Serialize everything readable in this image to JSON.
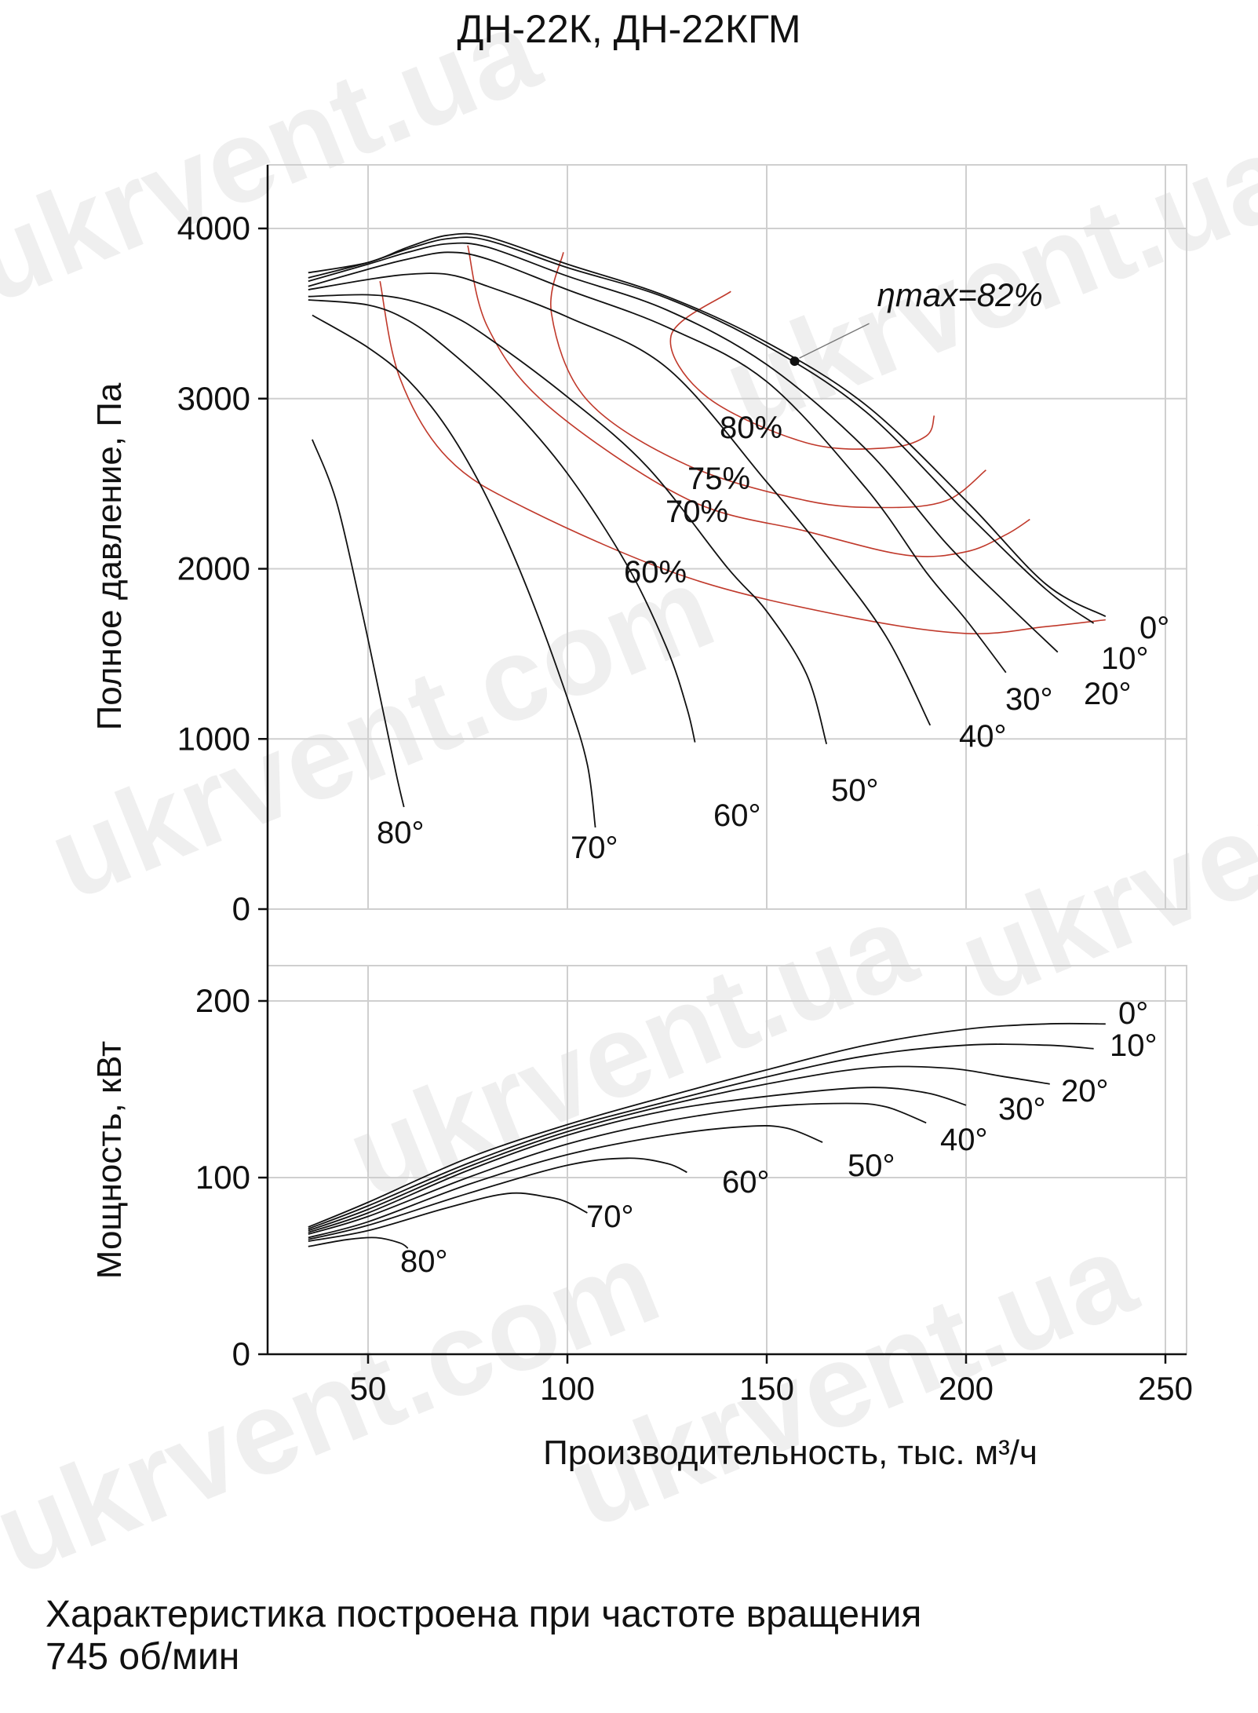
{
  "title": "ДН-22К, ДН-22КГМ",
  "watermark_text": "ukrvent.ua",
  "watermark_text_alt": "ukrvent.com",
  "note_line1": "Характеристика построена при частоте вращения",
  "note_line2": "745 об/мин",
  "chart_data": [
    {
      "type": "line",
      "panel": "pressure",
      "ylabel": "Полное давление, Па",
      "xlabel": "Производительность, тыс. м³/ч",
      "xlim": [
        35,
        255
      ],
      "ylim": [
        0,
        4400
      ],
      "yticks": [
        0,
        1000,
        2000,
        3000,
        4000
      ],
      "xticks": [
        50,
        100,
        150,
        200,
        250
      ],
      "grid": true,
      "series_color": "#111111",
      "efficiency_color": "#c0392b",
      "series": [
        {
          "name": "0°",
          "x": [
            35,
            50,
            60,
            70,
            80,
            100,
            125,
            150,
            175,
            200,
            220,
            235
          ],
          "y": [
            3740,
            3800,
            3890,
            3960,
            3950,
            3790,
            3600,
            3330,
            2960,
            2400,
            1910,
            1720
          ]
        },
        {
          "name": "10°",
          "x": [
            35,
            50,
            60,
            70,
            80,
            100,
            125,
            150,
            175,
            200,
            220,
            232
          ],
          "y": [
            3710,
            3800,
            3880,
            3940,
            3930,
            3770,
            3590,
            3310,
            2920,
            2330,
            1880,
            1680
          ]
        },
        {
          "name": "20°",
          "x": [
            35,
            50,
            60,
            70,
            80,
            100,
            125,
            150,
            175,
            195,
            210,
            223
          ],
          "y": [
            3690,
            3790,
            3860,
            3910,
            3890,
            3720,
            3520,
            3200,
            2700,
            2150,
            1800,
            1510
          ]
        },
        {
          "name": "30°",
          "x": [
            35,
            50,
            60,
            70,
            80,
            100,
            125,
            150,
            175,
            190,
            200,
            210
          ],
          "y": [
            3660,
            3760,
            3820,
            3860,
            3820,
            3640,
            3420,
            3100,
            2470,
            1980,
            1700,
            1390
          ]
        },
        {
          "name": "40°",
          "x": [
            35,
            50,
            60,
            70,
            80,
            100,
            125,
            150,
            165,
            180,
            191
          ],
          "y": [
            3640,
            3700,
            3730,
            3730,
            3660,
            3480,
            3180,
            2510,
            2080,
            1600,
            1080
          ]
        },
        {
          "name": "50°",
          "x": [
            35,
            50,
            60,
            70,
            80,
            100,
            120,
            140,
            150,
            160,
            165
          ],
          "y": [
            3600,
            3610,
            3580,
            3500,
            3360,
            3010,
            2600,
            2010,
            1750,
            1380,
            970
          ]
        },
        {
          "name": "60°",
          "x": [
            35,
            50,
            60,
            70,
            85,
            100,
            115,
            125,
            130,
            132
          ],
          "y": [
            3580,
            3550,
            3460,
            3290,
            2970,
            2560,
            2020,
            1530,
            1180,
            980
          ]
        },
        {
          "name": "70°",
          "x": [
            36,
            50,
            60,
            70,
            80,
            90,
            100,
            105,
            107
          ],
          "y": [
            3490,
            3300,
            3110,
            2820,
            2410,
            1880,
            1240,
            850,
            480
          ]
        },
        {
          "name": "80°",
          "x": [
            36,
            42,
            48,
            53,
            57,
            59
          ],
          "y": [
            2760,
            2400,
            1800,
            1250,
            800,
            600
          ]
        }
      ],
      "efficiency_curves": [
        {
          "name": "60%",
          "label": "60%",
          "x": [
            53,
            58,
            70,
            90,
            130,
            170,
            200,
            220,
            235
          ],
          "y": [
            3690,
            3120,
            2650,
            2350,
            1950,
            1720,
            1620,
            1660,
            1700
          ]
        },
        {
          "name": "70%",
          "label": "70%",
          "x": [
            75,
            80,
            95,
            130,
            160,
            185,
            200,
            210,
            216
          ],
          "y": [
            3900,
            3420,
            2960,
            2410,
            2220,
            2080,
            2100,
            2200,
            2290
          ]
        },
        {
          "name": "75%",
          "label": "75%",
          "x": [
            99,
            96,
            105,
            130,
            160,
            180,
            195,
            205
          ],
          "y": [
            3860,
            3500,
            2990,
            2610,
            2400,
            2360,
            2400,
            2580
          ]
        },
        {
          "name": "80%",
          "label": "80%",
          "x": [
            141,
            126,
            135,
            160,
            180,
            190,
            192
          ],
          "y": [
            3630,
            3370,
            3010,
            2740,
            2710,
            2780,
            2900
          ]
        }
      ],
      "max_point": {
        "label": "ηmax=82%",
        "x": 157,
        "y": 3220
      }
    },
    {
      "type": "line",
      "panel": "power",
      "ylabel": "Мощность, кВт",
      "xlim": [
        35,
        255
      ],
      "ylim": [
        0,
        200
      ],
      "yticks": [
        0,
        100,
        200
      ],
      "xticks": [
        50,
        100,
        150,
        200,
        250
      ],
      "grid": true,
      "series": [
        {
          "name": "0°",
          "x": [
            35,
            50,
            75,
            100,
            125,
            150,
            175,
            200,
            220,
            235
          ],
          "y": [
            72,
            86,
            111,
            130,
            146,
            161,
            175,
            184,
            187,
            187
          ]
        },
        {
          "name": "10°",
          "x": [
            35,
            50,
            75,
            100,
            125,
            150,
            175,
            200,
            220,
            232
          ],
          "y": [
            71,
            84,
            108,
            128,
            143,
            157,
            169,
            175,
            175,
            173
          ]
        },
        {
          "name": "20°",
          "x": [
            35,
            50,
            75,
            100,
            125,
            150,
            175,
            195,
            210,
            221
          ],
          "y": [
            70,
            82,
            106,
            126,
            141,
            153,
            162,
            162,
            157,
            153
          ]
        },
        {
          "name": "30°",
          "x": [
            35,
            50,
            75,
            100,
            125,
            150,
            175,
            190,
            200
          ],
          "y": [
            69,
            80,
            104,
            124,
            138,
            146,
            151,
            148,
            141
          ]
        },
        {
          "name": "40°",
          "x": [
            35,
            50,
            75,
            100,
            125,
            150,
            170,
            180,
            190
          ],
          "y": [
            68,
            78,
            100,
            119,
            132,
            140,
            142,
            140,
            131
          ]
        },
        {
          "name": "50°",
          "x": [
            35,
            50,
            75,
            100,
            125,
            145,
            155,
            164
          ],
          "y": [
            66,
            75,
            96,
            113,
            124,
            129,
            128,
            120
          ]
        },
        {
          "name": "60°",
          "x": [
            35,
            50,
            75,
            100,
            115,
            125,
            130
          ],
          "y": [
            65,
            73,
            91,
            107,
            111,
            108,
            103
          ]
        },
        {
          "name": "70°",
          "x": [
            35,
            50,
            70,
            85,
            95,
            100,
            105
          ],
          "y": [
            64,
            70,
            83,
            91,
            89,
            86,
            80
          ]
        },
        {
          "name": "80°",
          "x": [
            35,
            45,
            52,
            58,
            60
          ],
          "y": [
            61,
            65,
            66,
            63,
            60
          ]
        }
      ]
    }
  ]
}
